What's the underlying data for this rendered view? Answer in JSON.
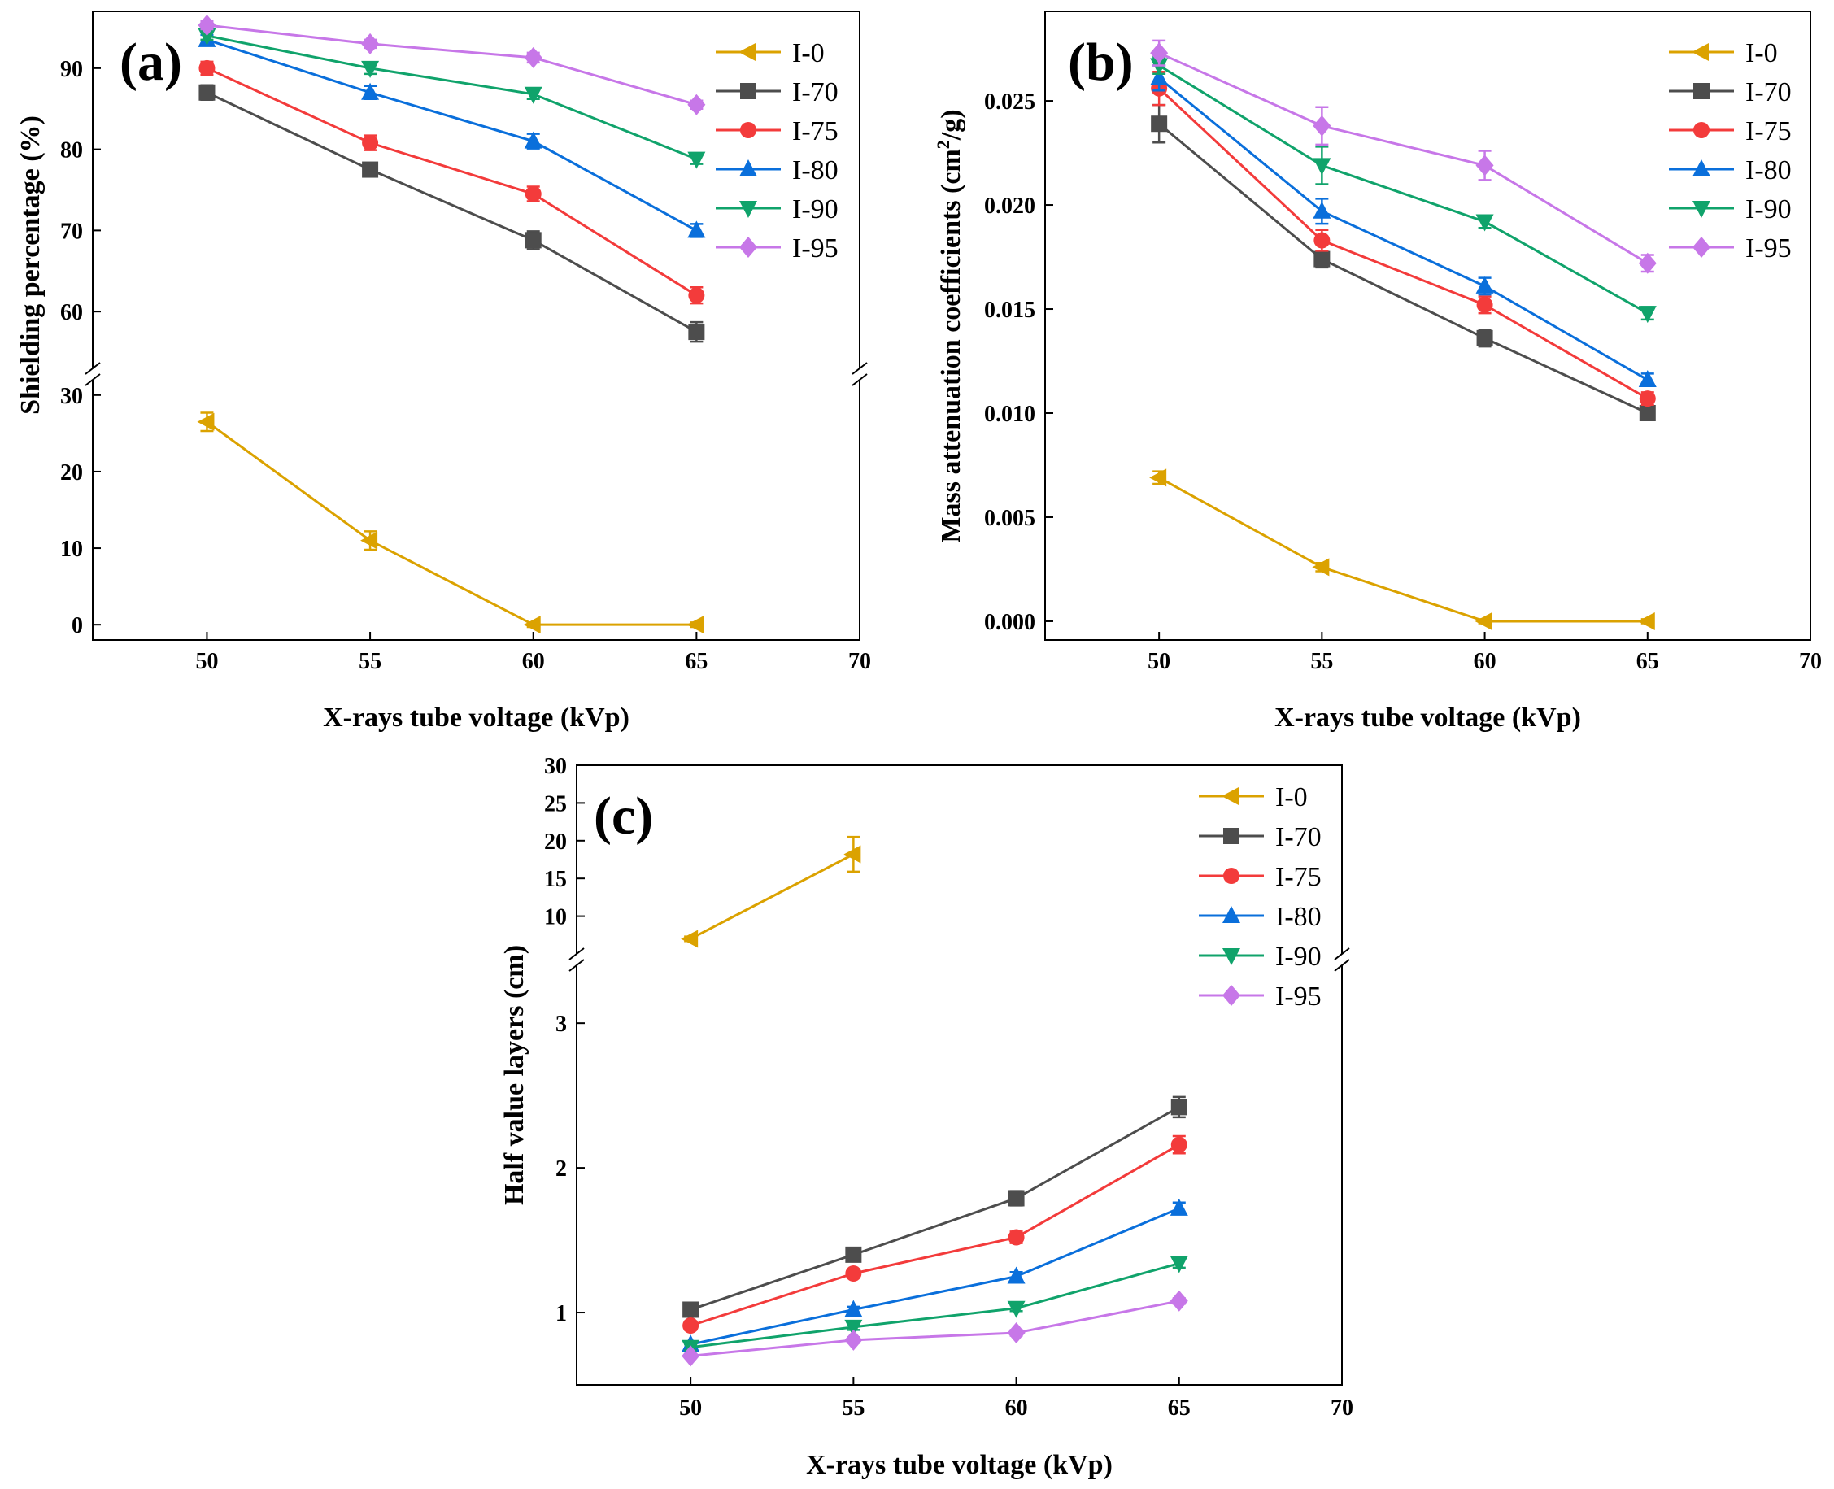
{
  "chart_data": [
    {
      "type": "line",
      "panel_label": "(a)",
      "xlabel": "X-rays tube voltage (kVp)",
      "ylabel": "Shielding percentage (%)",
      "x_ticks": [
        "50",
        "55",
        "60",
        "65",
        "70"
      ],
      "y_ticks": [
        "0",
        "10",
        "20",
        "30",
        "60",
        "70",
        "80",
        "90"
      ],
      "xlim": [
        46.5,
        70
      ],
      "ylim_lower": [
        -2,
        32
      ],
      "ylim_upper": [
        53,
        97
      ],
      "axis_break": true,
      "x": [
        50,
        55,
        60,
        65
      ],
      "series": [
        {
          "name": "I-0",
          "values": [
            26.5,
            11.0,
            0.0,
            0.0
          ],
          "errors": [
            1.2,
            1.2,
            0.3,
            0.3
          ]
        },
        {
          "name": "I-70",
          "values": [
            87.0,
            77.5,
            68.8,
            57.5
          ],
          "errors": [
            0.9,
            0.6,
            1.1,
            1.2
          ]
        },
        {
          "name": "I-75",
          "values": [
            90.0,
            80.8,
            74.5,
            62.0
          ],
          "errors": [
            0.8,
            0.9,
            0.9,
            1.0
          ]
        },
        {
          "name": "I-80",
          "values": [
            93.5,
            87.0,
            81.0,
            70.0
          ],
          "errors": [
            0.6,
            0.8,
            0.9,
            0.8
          ]
        },
        {
          "name": "I-90",
          "values": [
            94.0,
            90.0,
            86.8,
            78.8
          ],
          "errors": [
            0.5,
            0.7,
            0.6,
            0.6
          ]
        },
        {
          "name": "I-95",
          "values": [
            95.3,
            93.0,
            91.3,
            85.5
          ],
          "errors": [
            0.5,
            0.5,
            0.6,
            0.5
          ]
        }
      ]
    },
    {
      "type": "line",
      "panel_label": "(b)",
      "xlabel": "X-rays tube voltage (kVp)",
      "ylabel_main": "Mass attenuation coefficients (cm",
      "ylabel_sup": "2",
      "ylabel_end": "/g)",
      "x_ticks": [
        "50",
        "55",
        "60",
        "65",
        "70"
      ],
      "y_ticks": [
        "0.000",
        "0.005",
        "0.010",
        "0.015",
        "0.020",
        "0.025"
      ],
      "xlim": [
        46.5,
        70
      ],
      "ylim": [
        -0.0009,
        0.0293
      ],
      "x": [
        50,
        55,
        60,
        65
      ],
      "series": [
        {
          "name": "I-0",
          "values": [
            0.0069,
            0.0026,
            0.0,
            0.0
          ],
          "errors": [
            0.0003,
            0.0002,
            0.0001,
            0.0001
          ]
        },
        {
          "name": "I-70",
          "values": [
            0.0239,
            0.0174,
            0.0136,
            0.01
          ],
          "errors": [
            0.0009,
            0.0004,
            0.0004,
            0.0003
          ]
        },
        {
          "name": "I-75",
          "values": [
            0.0256,
            0.0183,
            0.0152,
            0.0107
          ],
          "errors": [
            0.0008,
            0.0005,
            0.0004,
            0.0003
          ]
        },
        {
          "name": "I-80",
          "values": [
            0.0261,
            0.0197,
            0.0161,
            0.0116
          ],
          "errors": [
            0.0006,
            0.0006,
            0.0004,
            0.0003
          ]
        },
        {
          "name": "I-90",
          "values": [
            0.0267,
            0.0219,
            0.0192,
            0.0148
          ],
          "errors": [
            0.0004,
            0.0009,
            0.0003,
            0.0003
          ]
        },
        {
          "name": "I-95",
          "values": [
            0.0273,
            0.0238,
            0.0219,
            0.0172
          ],
          "errors": [
            0.0006,
            0.0009,
            0.0007,
            0.0004
          ]
        }
      ]
    },
    {
      "type": "line",
      "panel_label": "(c)",
      "xlabel": "X-rays tube voltage (kVp)",
      "ylabel": "Half value layers (cm)",
      "x_ticks": [
        "50",
        "55",
        "60",
        "65",
        "70"
      ],
      "y_ticks": [
        "1",
        "2",
        "3",
        "10",
        "15",
        "20",
        "25",
        "30"
      ],
      "xlim": [
        46.5,
        70
      ],
      "ylim_lower": [
        0.5,
        3.4
      ],
      "ylim_upper": [
        5,
        30
      ],
      "axis_break": true,
      "x": [
        50,
        55,
        60,
        65
      ],
      "series": [
        {
          "name": "I-0",
          "values": [
            7.0,
            18.2,
            null,
            null
          ],
          "errors": [
            0.3,
            2.3,
            null,
            null
          ]
        },
        {
          "name": "I-70",
          "values": [
            1.02,
            1.4,
            1.79,
            2.42
          ],
          "errors": [
            0.03,
            0.02,
            0.05,
            0.07
          ]
        },
        {
          "name": "I-75",
          "values": [
            0.91,
            1.27,
            1.52,
            2.16
          ],
          "errors": [
            0.03,
            0.03,
            0.04,
            0.06
          ]
        },
        {
          "name": "I-80",
          "values": [
            0.78,
            1.02,
            1.25,
            1.72
          ],
          "errors": [
            0.02,
            0.02,
            0.03,
            0.04
          ]
        },
        {
          "name": "I-90",
          "values": [
            0.76,
            0.9,
            1.03,
            1.34
          ],
          "errors": [
            0.02,
            0.02,
            0.02,
            0.03
          ]
        },
        {
          "name": "I-95",
          "values": [
            0.7,
            0.81,
            0.86,
            1.08
          ],
          "errors": [
            0.01,
            0.02,
            0.02,
            0.02
          ]
        }
      ]
    }
  ],
  "colors": {
    "I-0": "#DBA200",
    "I-70": "#4D4D4D",
    "I-75": "#F33B3B",
    "I-80": "#0A6FDB",
    "I-90": "#10A36B",
    "I-95": "#C777E8"
  },
  "markers": {
    "I-0": "triangle-left",
    "I-70": "square",
    "I-75": "circle",
    "I-80": "triangle-up",
    "I-90": "triangle-down",
    "I-95": "diamond"
  }
}
